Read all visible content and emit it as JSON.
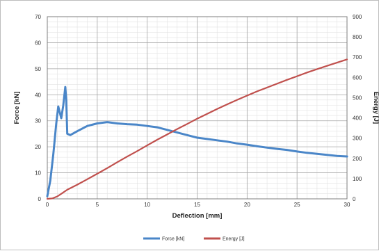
{
  "chart_data": {
    "type": "line",
    "xlabel": "Deflection  [mm]",
    "ylabel_left": "Force  [kN]",
    "ylabel_right": "Energy  [J]",
    "xlim": [
      0,
      30
    ],
    "ylim_left": [
      0,
      70
    ],
    "ylim_right": [
      0,
      900
    ],
    "x_ticks": [
      0,
      5,
      10,
      15,
      20,
      25,
      30
    ],
    "y_ticks_left": [
      0,
      10,
      20,
      30,
      40,
      50,
      60,
      70
    ],
    "y_ticks_right": [
      0,
      100,
      200,
      300,
      400,
      500,
      600,
      700,
      800,
      900
    ],
    "grid": true,
    "legend_position": "bottom",
    "series": [
      {
        "name": "Force [kN]",
        "axis": "left",
        "color": "#4a86c8",
        "x": [
          0,
          0.3,
          0.6,
          0.9,
          1.1,
          1.2,
          1.4,
          1.6,
          1.8,
          1.9,
          2.0,
          2.3,
          3.0,
          4.0,
          5.0,
          6.0,
          7.0,
          8.0,
          9.0,
          10.0,
          11.0,
          12.0,
          13.0,
          14.0,
          15.0,
          16.0,
          17.0,
          18.0,
          19.0,
          20.0,
          21.0,
          22.0,
          23.0,
          24.0,
          25.0,
          26.0,
          27.0,
          28.0,
          29.0,
          30.0
        ],
        "y": [
          1,
          7,
          17,
          29,
          35.5,
          34,
          31,
          36,
          43,
          38,
          25,
          24.5,
          26,
          28,
          29,
          29.5,
          29,
          28.7,
          28.5,
          28,
          27.5,
          26.5,
          25.5,
          24.5,
          23.5,
          23,
          22.5,
          22,
          21.3,
          20.8,
          20.2,
          19.7,
          19.2,
          18.8,
          18.2,
          17.7,
          17.3,
          16.9,
          16.5,
          16.3
        ]
      },
      {
        "name": "Energy [J]",
        "axis": "right",
        "color": "#c0504d",
        "x": [
          0,
          0.5,
          1.0,
          1.5,
          2.0,
          3.0,
          4.0,
          5.0,
          6.0,
          7.0,
          8.0,
          9.0,
          10.0,
          11.0,
          12.0,
          13.0,
          14.0,
          15.0,
          16.0,
          17.0,
          18.0,
          19.0,
          20.0,
          21.0,
          22.0,
          23.0,
          24.0,
          25.0,
          26.0,
          27.0,
          28.0,
          29.0,
          30.0
        ],
        "y": [
          0,
          2,
          12,
          28,
          45,
          70,
          97,
          124,
          152,
          181,
          209,
          236,
          264,
          292,
          318,
          345,
          370,
          396,
          420,
          444,
          467,
          489,
          510,
          531,
          550,
          569,
          588,
          606,
          624,
          641,
          657,
          673,
          689
        ]
      }
    ]
  }
}
